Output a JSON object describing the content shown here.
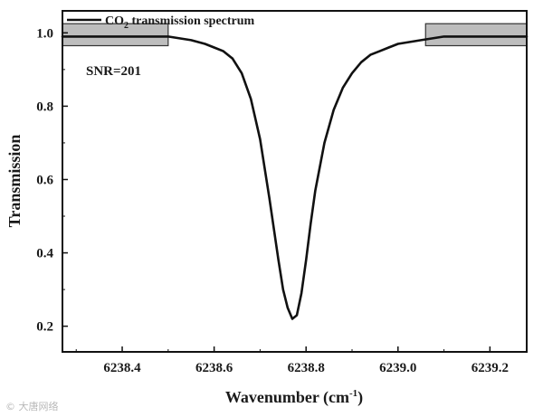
{
  "chart_data": {
    "type": "line",
    "legend": {
      "label": "CO",
      "subscript": "2",
      "suffix": " transmission spectrum",
      "placement": "top-left"
    },
    "xlabel": {
      "main": "Wavenumber (cm",
      "sup": "-1",
      "end": ")"
    },
    "ylabel": "Transmission",
    "xlim": [
      6238.27,
      6239.28
    ],
    "ylim": [
      0.13,
      1.06
    ],
    "xticks": [
      6238.4,
      6238.6,
      6238.8,
      6239.0,
      6239.2
    ],
    "xtick_labels": [
      "6238.4",
      "6238.6",
      "6238.8",
      "6239.0",
      "6239.2"
    ],
    "yticks": [
      0.2,
      0.4,
      0.6,
      0.8,
      1.0
    ],
    "ytick_labels": [
      "0.2",
      "0.4",
      "0.6",
      "0.8",
      "1.0"
    ],
    "grid": false,
    "series": [
      {
        "color": "#111111",
        "x": [
          6238.27,
          6238.3,
          6238.35,
          6238.4,
          6238.45,
          6238.5,
          6238.55,
          6238.58,
          6238.6,
          6238.62,
          6238.64,
          6238.66,
          6238.68,
          6238.7,
          6238.72,
          6238.74,
          6238.75,
          6238.76,
          6238.77,
          6238.78,
          6238.79,
          6238.8,
          6238.81,
          6238.82,
          6238.84,
          6238.86,
          6238.88,
          6238.9,
          6238.92,
          6238.94,
          6238.96,
          6238.98,
          6239.0,
          6239.05,
          6239.1,
          6239.15,
          6239.2,
          6239.25,
          6239.28
        ],
        "y": [
          0.99,
          0.99,
          0.99,
          0.99,
          0.99,
          0.99,
          0.98,
          0.97,
          0.96,
          0.95,
          0.93,
          0.89,
          0.82,
          0.71,
          0.55,
          0.38,
          0.3,
          0.25,
          0.22,
          0.23,
          0.29,
          0.38,
          0.48,
          0.57,
          0.7,
          0.79,
          0.85,
          0.89,
          0.92,
          0.94,
          0.95,
          0.96,
          0.97,
          0.98,
          0.99,
          0.99,
          0.99,
          0.99,
          0.99
        ]
      }
    ],
    "highlight_regions": [
      {
        "x": [
          6238.27,
          6238.5
        ],
        "y": [
          0.965,
          1.025
        ],
        "fill": "#bdbdbd"
      },
      {
        "x": [
          6239.06,
          6239.28
        ],
        "y": [
          0.965,
          1.025
        ],
        "fill": "#bdbdbd"
      }
    ],
    "annotation": "SNR=201"
  },
  "watermark": "© 大唐网络"
}
